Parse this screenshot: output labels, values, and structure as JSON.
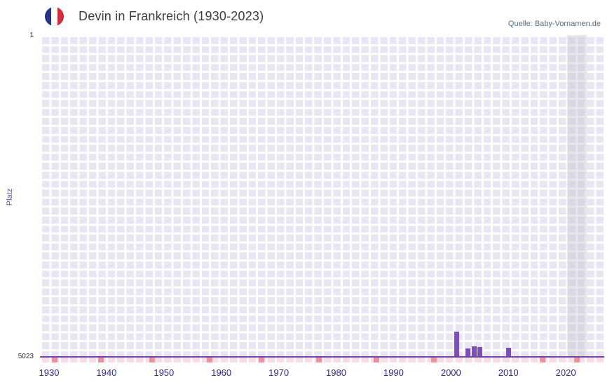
{
  "header": {
    "title": "Devin in Frankreich (1930-2023)",
    "source": "Quelle: Baby-Vornamen.de"
  },
  "chart_data": {
    "type": "bar",
    "title": "Devin in Frankreich (1930-2023)",
    "ylabel": "Platz",
    "y_axis": {
      "top_label": "1",
      "bottom_label": "5023",
      "min": 1,
      "max": 5023,
      "inverted": true
    },
    "x_ticks": [
      1930,
      1940,
      1950,
      1960,
      1970,
      1980,
      1990,
      2000,
      2010,
      2020
    ],
    "x_range": [
      1930,
      2023
    ],
    "grid": true,
    "legend": null,
    "bars": [
      {
        "year": 2001,
        "rank": 4640
      },
      {
        "year": 2003,
        "rank": 4900
      },
      {
        "year": 2004,
        "rank": 4865
      },
      {
        "year": 2005,
        "rank": 4875
      },
      {
        "year": 2010,
        "rank": 4895
      }
    ],
    "no_rank_marker_years": [
      1931,
      1939,
      1948,
      1958,
      1967,
      1977,
      1987,
      1997,
      2016,
      2022
    ],
    "colors": {
      "bar": "#7b4fb3",
      "plot_bg": "#e9e5f2",
      "grid": "#ffffff",
      "axis_line": "#7143a8",
      "strip_bg": "#f8dde8",
      "strip_mark": "#ef8fa2",
      "flag_blue": "#2a338e",
      "flag_red": "#d22d3f"
    }
  }
}
